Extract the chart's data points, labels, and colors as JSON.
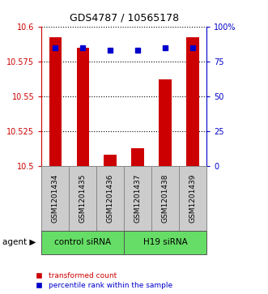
{
  "title": "GDS4787 / 10565178",
  "categories": [
    "GSM1201434",
    "GSM1201435",
    "GSM1201436",
    "GSM1201437",
    "GSM1201438",
    "GSM1201439"
  ],
  "red_values": [
    10.592,
    10.585,
    10.508,
    10.513,
    10.562,
    10.592
  ],
  "blue_values": [
    85,
    85,
    83,
    83,
    85,
    85
  ],
  "ylim_left": [
    10.5,
    10.6
  ],
  "ylim_right": [
    0,
    100
  ],
  "yticks_left": [
    10.5,
    10.525,
    10.55,
    10.575,
    10.6
  ],
  "yticks_right": [
    0,
    25,
    50,
    75,
    100
  ],
  "ytick_labels_right": [
    "0",
    "25",
    "50",
    "75",
    "100%"
  ],
  "group1_label": "control siRNA",
  "group2_label": "H19 siRNA",
  "group1_indices": [
    0,
    1,
    2
  ],
  "group2_indices": [
    3,
    4,
    5
  ],
  "agent_label": "agent",
  "legend_red": "transformed count",
  "legend_blue": "percentile rank within the sample",
  "bar_color": "#cc0000",
  "dot_color": "#0000cc",
  "group_bg_color": "#66dd66",
  "sample_bg_color": "#cccccc",
  "plot_bg_color": "#ffffff",
  "bar_width": 0.45,
  "bar_bottom": 10.5
}
